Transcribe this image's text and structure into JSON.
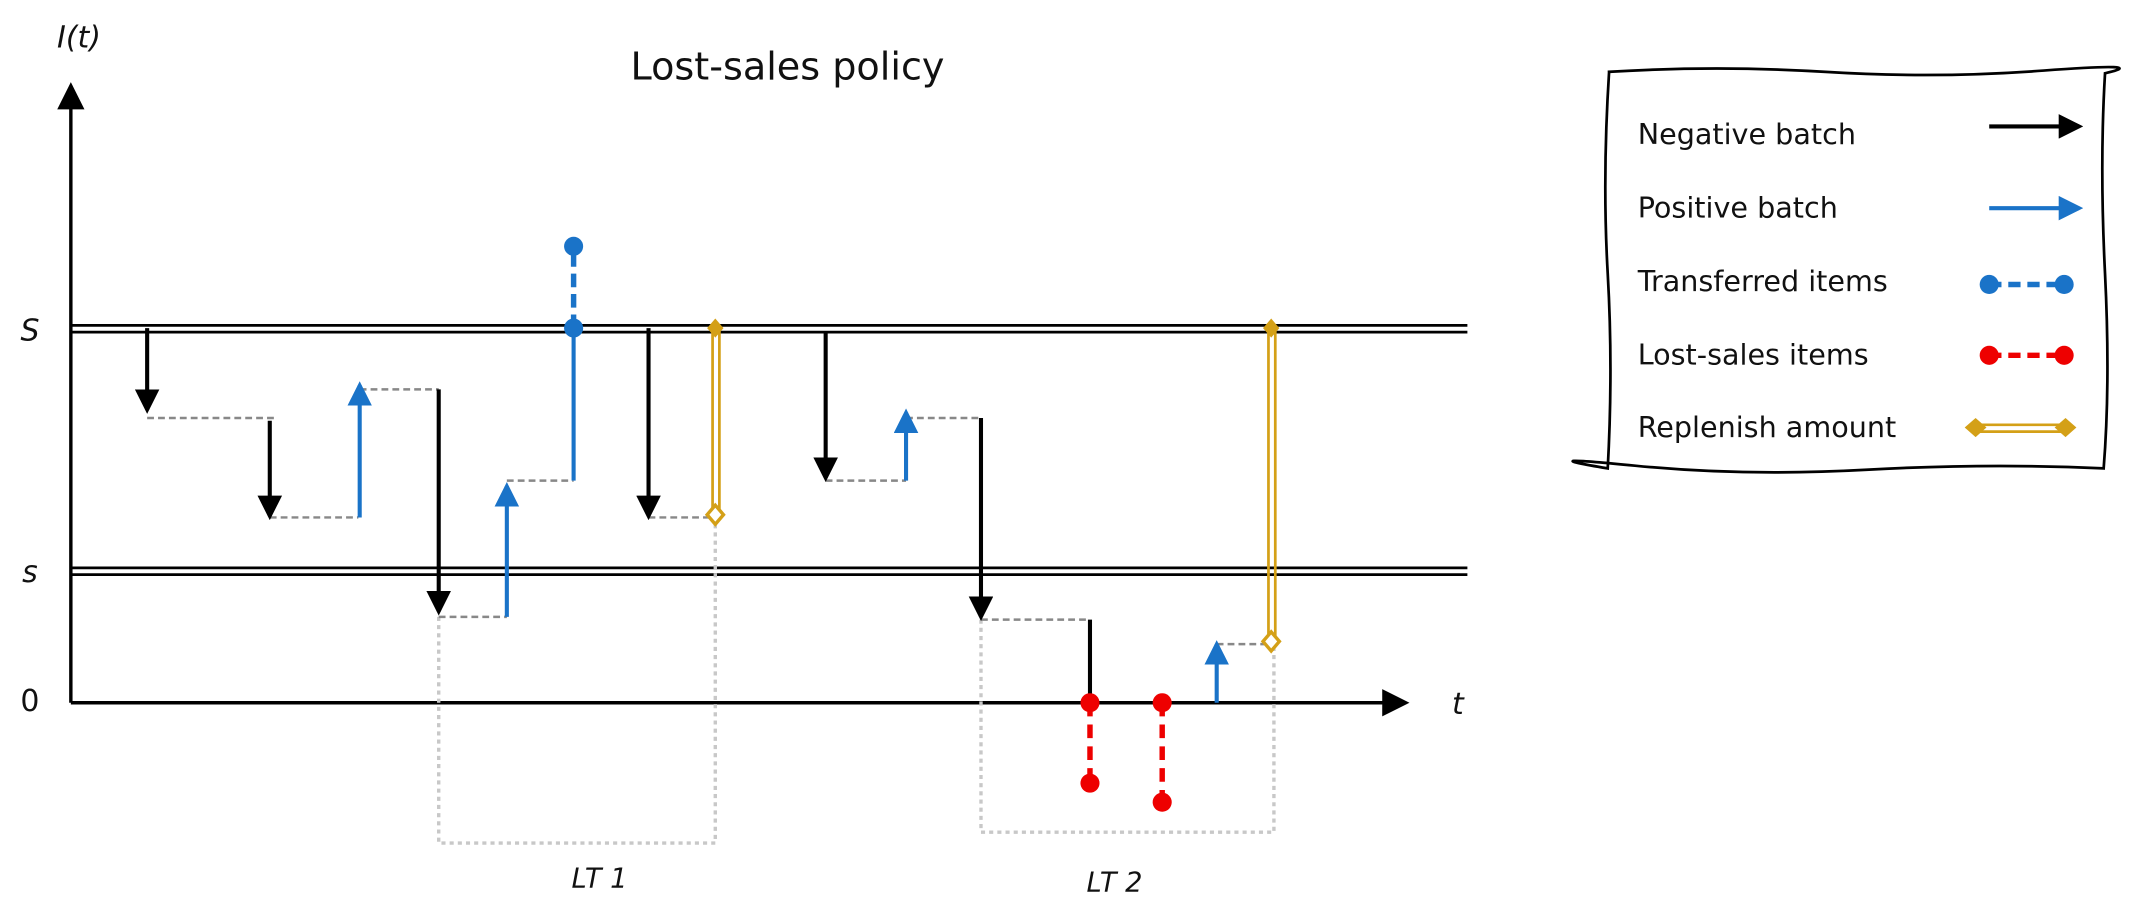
{
  "title": "Lost-sales policy",
  "axes": {
    "y_label": "I(t)",
    "x_label": "t"
  },
  "levels": {
    "upper": "S",
    "lower": "s",
    "zero": "0"
  },
  "lead_times": [
    "LT 1",
    "LT 2"
  ],
  "legend": [
    "Negative batch",
    "Positive batch",
    "Transferred items",
    "Lost-sales items",
    "Replenish amount"
  ]
}
